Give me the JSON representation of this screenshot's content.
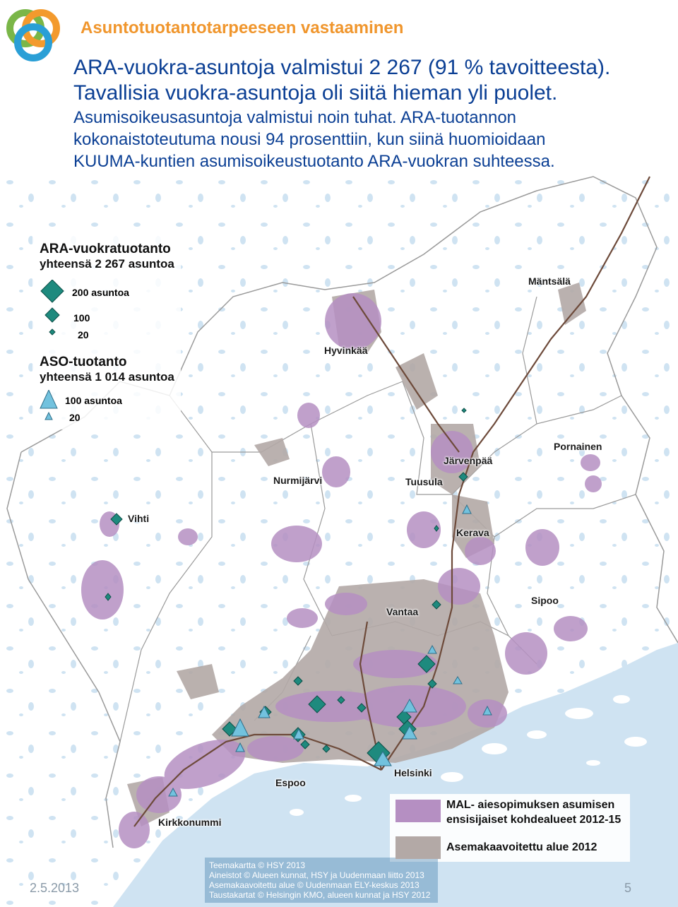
{
  "header": {
    "title": "Asuntotuotantotarpeeseen vastaaminen",
    "lead_line_1": "ARA-vuokra-asuntoja valmistui 2 267 (91 % tavoitteesta).",
    "lead_line_2": "Tavallisia vuokra-asuntoja oli siitä hieman yli puolet.",
    "lead_line_3": "Asumisoikeusasuntoja valmistui  noin tuhat. ARA-tuotannon",
    "lead_line_4": "kokonaistoteutuma nousi 94 prosenttiin, kun siinä huomioidaan",
    "lead_line_5": "KUUMA-kuntien asumisoikeustuotanto ARA-vuokran suhteessa."
  },
  "legend": {
    "ara_title": "ARA-vuokratuotanto",
    "ara_total": "yhteensä 2 267 asuntoa",
    "ara_sizes": [
      "200 asuntoa",
      "100",
      "20"
    ],
    "aso_title": "ASO-tuotanto",
    "aso_total": "yhteensä 1 014 asuntoa",
    "aso_sizes": [
      "100 asuntoa",
      "20"
    ],
    "mal_label_1": "MAL- aiesopimuksen asumisen",
    "mal_label_2": "ensisijaiset kohdealueet 2012-15",
    "asemakaava_label": "Asemakaavoitettu alue 2012"
  },
  "places": {
    "mantsala": "Mäntsälä",
    "hyvinkaa": "Hyvinkää",
    "pornainen": "Pornainen",
    "jarvenpaa": "Järvenpää",
    "nurmijarvi": "Nurmijärvi",
    "tuusula": "Tuusula",
    "vihti": "Vihti",
    "kerava": "Kerava",
    "sipoo": "Sipoo",
    "vantaa": "Vantaa",
    "espoo": "Espoo",
    "helsinki": "Helsinki",
    "kirkkonummi": "Kirkkonummi"
  },
  "credits": [
    "Teemakartta © HSY 2013",
    "Aineistot © Alueen kunnat, HSY ja Uudenmaan liitto 2013",
    "Asemakaavoitettu alue © Uudenmaan ELY-keskus 2013",
    "Taustakartat © Helsingin KMO, alueen kunnat ja HSY 2012"
  ],
  "footer": {
    "date": "2.5.2013",
    "page": "5"
  },
  "colors": {
    "title_orange": "#f0962d",
    "lead_blue": "#0b3f94",
    "mal_purple": "#b58fc2",
    "asemakaava_gray": "#b3a9a6",
    "ara_marker": "#1e8a7e",
    "aso_marker": "#72c2de",
    "sea": "#cfe3f2"
  }
}
